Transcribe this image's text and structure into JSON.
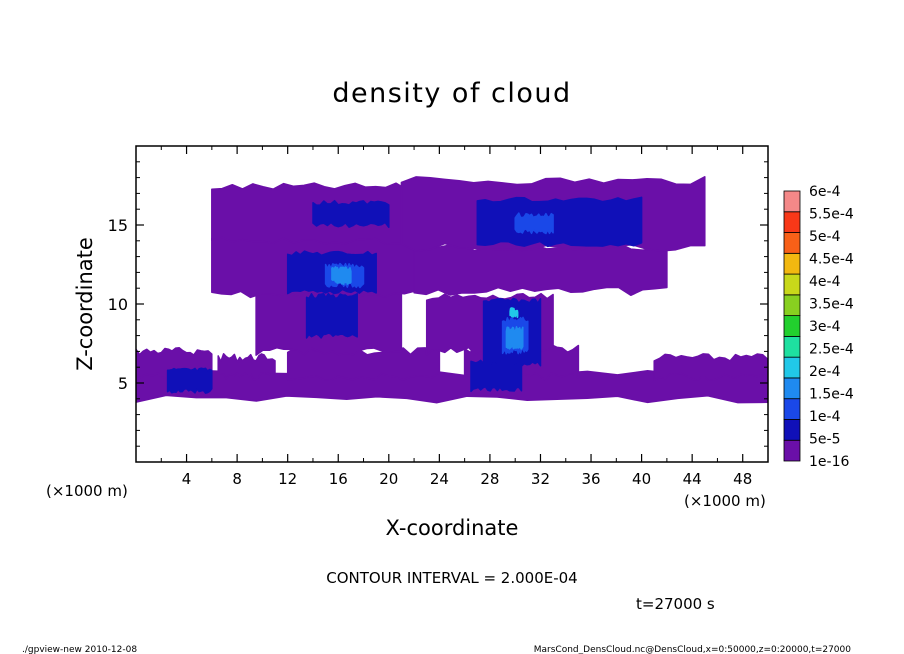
{
  "chart_data": {
    "type": "heatmap",
    "title": "density of cloud",
    "xlabel": "X-coordinate",
    "ylabel": "Z-coordinate",
    "x_unit_left": "(×1000 m)",
    "x_unit_right": "(×1000 m)",
    "xlim": [
      0,
      50
    ],
    "ylim": [
      0,
      20
    ],
    "x_ticks": [
      4,
      8,
      12,
      16,
      20,
      24,
      28,
      32,
      36,
      40,
      44,
      48
    ],
    "x_tick_labels": [
      "4",
      "8",
      "12",
      "16",
      "20",
      "24",
      "28",
      "32",
      "36",
      "40",
      "44",
      "48"
    ],
    "y_ticks": [
      5,
      10,
      15
    ],
    "y_tick_labels": [
      "5",
      "10",
      "15"
    ],
    "colorbar": {
      "levels": [
        1e-16,
        5e-05,
        0.0001,
        0.00015,
        0.0002,
        0.00025,
        0.0003,
        0.00035,
        0.0004,
        0.00045,
        0.0005,
        0.00055,
        0.0006
      ],
      "labels": [
        "1e-16",
        "5e-5",
        "1e-4",
        "1.5e-4",
        "2e-4",
        "2.5e-4",
        "3e-4",
        "3.5e-4",
        "4e-4",
        "4.5e-4",
        "5e-4",
        "5.5e-4",
        "6e-4"
      ],
      "colors": [
        "#6a0fa8",
        "#1010b8",
        "#1a48e8",
        "#1f8af0",
        "#21c8e8",
        "#1ee0a0",
        "#22d02e",
        "#88d020",
        "#c8d81a",
        "#f2b810",
        "#f86018",
        "#f83818",
        "#f48888"
      ]
    },
    "cloud_regions": [
      {
        "x": [
          0,
          50
        ],
        "z": [
          4,
          5.6
        ],
        "level": 0
      },
      {
        "x": [
          0,
          6
        ],
        "z": [
          5.4,
          7
        ],
        "level": 0
      },
      {
        "x": [
          6.5,
          11
        ],
        "z": [
          5.4,
          6.6
        ],
        "level": 0
      },
      {
        "x": [
          12,
          24
        ],
        "z": [
          5.4,
          7
        ],
        "level": 0
      },
      {
        "x": [
          26,
          35
        ],
        "z": [
          5.4,
          7.2
        ],
        "level": 0
      },
      {
        "x": [
          41,
          50
        ],
        "z": [
          5.4,
          6.6
        ],
        "level": 0
      },
      {
        "x": [
          9.5,
          21
        ],
        "z": [
          7,
          10.8
        ],
        "level": 0
      },
      {
        "x": [
          23,
          33
        ],
        "z": [
          7,
          10.4
        ],
        "level": 0
      },
      {
        "x": [
          6,
          22
        ],
        "z": [
          10.6,
          14.2
        ],
        "level": 0
      },
      {
        "x": [
          6,
          23
        ],
        "z": [
          14,
          17.4
        ],
        "level": 0
      },
      {
        "x": [
          22,
          42
        ],
        "z": [
          10.8,
          13.6
        ],
        "level": 0
      },
      {
        "x": [
          21,
          45
        ],
        "z": [
          13.6,
          17.8
        ],
        "level": 0
      },
      {
        "x": [
          2.5,
          6
        ],
        "z": [
          4.5,
          5.8
        ],
        "level": 1
      },
      {
        "x": [
          26.5,
          30.5
        ],
        "z": [
          4.6,
          6.4
        ],
        "level": 1
      },
      {
        "x": [
          27.5,
          32
        ],
        "z": [
          6.2,
          10.2
        ],
        "level": 1
      },
      {
        "x": [
          12,
          19
        ],
        "z": [
          10.8,
          13.2
        ],
        "level": 1
      },
      {
        "x": [
          13.5,
          17.5
        ],
        "z": [
          8,
          10.5
        ],
        "level": 1
      },
      {
        "x": [
          14,
          20
        ],
        "z": [
          15,
          16.4
        ],
        "level": 1
      },
      {
        "x": [
          27,
          40
        ],
        "z": [
          13.8,
          16.6
        ],
        "level": 1
      },
      {
        "x": [
          15,
          18
        ],
        "z": [
          11.2,
          12.4
        ],
        "level": 2
      },
      {
        "x": [
          29,
          31
        ],
        "z": [
          7,
          9
        ],
        "level": 2
      },
      {
        "x": [
          30,
          33
        ],
        "z": [
          14.6,
          15.6
        ],
        "level": 2
      },
      {
        "x": [
          15.5,
          17
        ],
        "z": [
          11.4,
          12.2
        ],
        "level": 3
      },
      {
        "x": [
          29.3,
          30.6
        ],
        "z": [
          7.3,
          8.4
        ],
        "level": 3
      },
      {
        "x": [
          29.6,
          30.2
        ],
        "z": [
          9.3,
          9.6
        ],
        "level": 4
      }
    ]
  },
  "contour_interval": "CONTOUR INTERVAL = 2.000E-04",
  "time_label": "t=27000 s",
  "footer_left": "./gpview-new 2010-12-08",
  "footer_right": "MarsCond_DensCloud.nc@DensCloud,x=0:50000,z=0:20000,t=27000"
}
